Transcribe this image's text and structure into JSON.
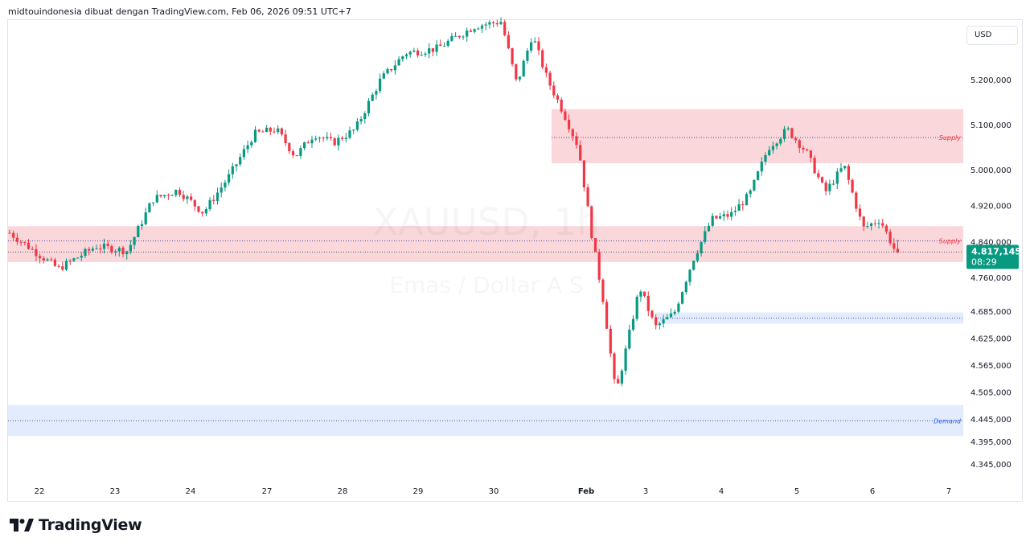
{
  "header": {
    "text": "midtouindonesia dibuat dengan TradingView.com, Feb 06, 2026 09:51 UTC+7"
  },
  "currency": "USD",
  "watermark": {
    "symbol": "XAUUSD, 1h",
    "name": "Emas / Dollar A S"
  },
  "logo": {
    "text": "TradingView"
  },
  "price_tag": {
    "price": "4.817,145",
    "countdown": "08:29"
  },
  "colors": {
    "up": "#089981",
    "down": "#f23645",
    "supply_fill": "#f7c6ca",
    "demand_fill": "#d6e4fb",
    "supply_text": "#f23645",
    "demand_text": "#2962ff",
    "tag": "#089981"
  },
  "chart_data": {
    "type": "candlestick",
    "symbol": "XAUUSD",
    "timeframe": "1h",
    "ylim": [
      4300,
      5300
    ],
    "y_ticks": [
      {
        "value": 5200,
        "label": "5.200,000"
      },
      {
        "value": 5100,
        "label": "5.100,000"
      },
      {
        "value": 5000,
        "label": "5.000,000"
      },
      {
        "value": 4920,
        "label": "4.920,000"
      },
      {
        "value": 4840,
        "label": "4.840,000"
      },
      {
        "value": 4760,
        "label": "4.760,000"
      },
      {
        "value": 4685,
        "label": "4.685,000"
      },
      {
        "value": 4625,
        "label": "4.625,000"
      },
      {
        "value": 4565,
        "label": "4.565,000"
      },
      {
        "value": 4505,
        "label": "4.505,000"
      },
      {
        "value": 4445,
        "label": "4.445,000"
      },
      {
        "value": 4395,
        "label": "4.395,000"
      },
      {
        "value": 4345,
        "label": "4.345,000"
      }
    ],
    "x_ticks": [
      "22",
      "23",
      "24",
      "27",
      "28",
      "29",
      "30",
      "Feb",
      "3",
      "4",
      "5",
      "6",
      "7"
    ],
    "last_price": 4817.145,
    "zones": [
      {
        "type": "supply",
        "label": "Supply",
        "top": 5135,
        "bottom": 5015,
        "mid": 5072,
        "start": "30"
      },
      {
        "type": "supply",
        "label": "Supply",
        "top": 4875,
        "bottom": 4795,
        "mid": 4842,
        "start": "22"
      },
      {
        "type": "demand",
        "label": "",
        "top": 4683,
        "bottom": 4658,
        "mid": 4670,
        "start": "3"
      },
      {
        "type": "demand",
        "label": "Demand",
        "top": 4477,
        "bottom": 4408,
        "mid": 4442,
        "start": "22"
      }
    ],
    "series": [
      {
        "points": [
          {
            "x": "21",
            "y": 4860
          },
          {
            "x": "22",
            "y": 4780
          },
          {
            "x": "22",
            "y": 4830
          },
          {
            "x": "23",
            "y": 4820
          },
          {
            "x": "23",
            "y": 4935
          },
          {
            "x": "23",
            "y": 4955
          },
          {
            "x": "24",
            "y": 4905
          },
          {
            "x": "24",
            "y": 4985
          },
          {
            "x": "24",
            "y": 5080
          },
          {
            "x": "27",
            "y": 5090
          },
          {
            "x": "27",
            "y": 5030
          },
          {
            "x": "27",
            "y": 5080
          },
          {
            "x": "27",
            "y": 5060
          },
          {
            "x": "28",
            "y": 5090
          },
          {
            "x": "28",
            "y": 5200
          },
          {
            "x": "28",
            "y": 5260
          },
          {
            "x": "29",
            "y": 5270
          },
          {
            "x": "29",
            "y": 5320
          },
          {
            "x": "30",
            "y": 5330
          },
          {
            "x": "30",
            "y": 5190
          },
          {
            "x": "30",
            "y": 5300
          },
          {
            "x": "30",
            "y": 5200
          },
          {
            "x": "30",
            "y": 5130
          },
          {
            "x": "30",
            "y": 5050
          },
          {
            "x": "Feb",
            "y": 4850
          },
          {
            "x": "Feb",
            "y": 4700
          },
          {
            "x": "Feb",
            "y": 4500
          },
          {
            "x": "Feb",
            "y": 4620
          },
          {
            "x": "Feb",
            "y": 4740
          },
          {
            "x": "3",
            "y": 4650
          },
          {
            "x": "3",
            "y": 4680
          },
          {
            "x": "3",
            "y": 4800
          },
          {
            "x": "3",
            "y": 4890
          },
          {
            "x": "4",
            "y": 4900
          },
          {
            "x": "4",
            "y": 4945
          },
          {
            "x": "4",
            "y": 5050
          },
          {
            "x": "4",
            "y": 5090
          },
          {
            "x": "5",
            "y": 5040
          },
          {
            "x": "5",
            "y": 4950
          },
          {
            "x": "5",
            "y": 5010
          },
          {
            "x": "5",
            "y": 4870
          },
          {
            "x": "6",
            "y": 4890
          },
          {
            "x": "6",
            "y": 4820
          },
          {
            "x": "6",
            "y": 4870
          },
          {
            "x": "6",
            "y": 4710
          },
          {
            "x": "6",
            "y": 4817
          }
        ]
      }
    ]
  }
}
